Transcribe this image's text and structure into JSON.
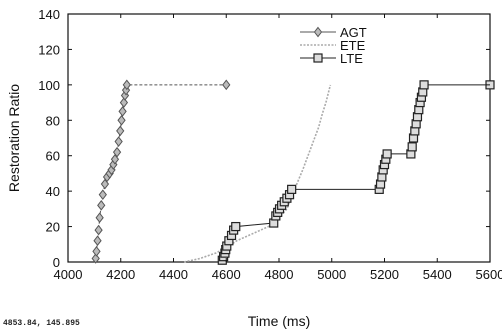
{
  "footer_readout": "4853.84, 145.895",
  "chart_data": {
    "type": "line",
    "xlabel": "Time (ms)",
    "ylabel": "Restoration Ratio",
    "xlim": [
      4000,
      5600
    ],
    "ylim": [
      0,
      140
    ],
    "x_ticks": [
      "4000",
      "4200",
      "4400",
      "4600",
      "4800",
      "5000",
      "5200",
      "5400",
      "5600"
    ],
    "y_ticks": [
      "0",
      "20",
      "40",
      "60",
      "80",
      "100",
      "120",
      "140"
    ],
    "grid": false,
    "legend_position": "top-right",
    "series": [
      {
        "name": "AGT",
        "color": "#555555",
        "marker": "diamond",
        "x": [
          4105,
          4108,
          4112,
          4116,
          4120,
          4126,
          4132,
          4140,
          4148,
          4158,
          4165,
          4172,
          4178,
          4186,
          4192,
          4198,
          4203,
          4207,
          4212,
          4216,
          4220,
          4223,
          4600
        ],
        "y": [
          2,
          6,
          12,
          18,
          25,
          32,
          38,
          44,
          48,
          50,
          52,
          55,
          58,
          62,
          68,
          74,
          80,
          85,
          90,
          94,
          97,
          100,
          100
        ]
      },
      {
        "name": "ETE",
        "color": "#aaaaaa",
        "marker": "none",
        "x": [
          4440,
          4500,
          4560,
          4600,
          4640,
          4700,
          4760,
          4800,
          4830,
          4850,
          4870,
          4890,
          4910,
          4930,
          4950,
          4965,
          4978,
          4988,
          4995
        ],
        "y": [
          0,
          2,
          5,
          8,
          12,
          16,
          20,
          25,
          30,
          38,
          45,
          52,
          60,
          68,
          76,
          84,
          90,
          96,
          100
        ]
      },
      {
        "name": "LTE",
        "color": "#222222",
        "marker": "square",
        "x": [
          4585,
          4590,
          4595,
          4598,
          4602,
          4610,
          4620,
          4628,
          4636,
          4780,
          4788,
          4795,
          4802,
          4810,
          4820,
          4830,
          4840,
          4848,
          5180,
          5185,
          5190,
          5195,
          5200,
          5205,
          5210,
          5300,
          5305,
          5310,
          5315,
          5320,
          5325,
          5330,
          5335,
          5340,
          5345,
          5350,
          5600
        ],
        "y": [
          1,
          3,
          5,
          7,
          9,
          12,
          15,
          18,
          20,
          22,
          26,
          28,
          30,
          32,
          34,
          36,
          38,
          41,
          41,
          44,
          48,
          52,
          55,
          58,
          61,
          61,
          65,
          70,
          74,
          78,
          82,
          86,
          90,
          93,
          96,
          100,
          100
        ]
      }
    ]
  }
}
